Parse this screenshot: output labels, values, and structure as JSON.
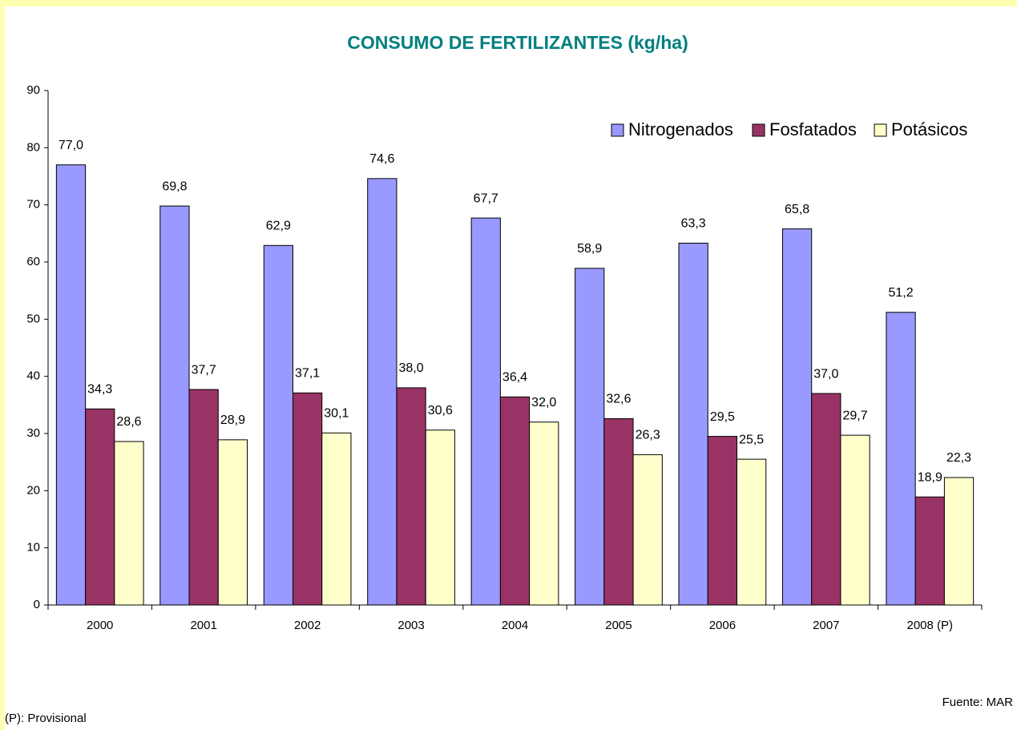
{
  "chart_data": {
    "type": "bar",
    "title": "CONSUMO DE FERTILIZANTES (kg/ha)",
    "categories": [
      "2000",
      "2001",
      "2002",
      "2003",
      "2004",
      "2005",
      "2006",
      "2007",
      "2008 (P)"
    ],
    "series": [
      {
        "name": "Nitrogenados",
        "color": "#9999ff",
        "values": [
          77.0,
          69.8,
          62.9,
          74.6,
          67.7,
          58.9,
          63.3,
          65.8,
          51.2
        ],
        "value_labels": [
          "77,0",
          "69,8",
          "62,9",
          "74,6",
          "67,7",
          "58,9",
          "63,3",
          "65,8",
          "51,2"
        ]
      },
      {
        "name": "Fosfatados",
        "color": "#993366",
        "values": [
          34.3,
          37.7,
          37.1,
          38.0,
          36.4,
          32.6,
          29.5,
          37.0,
          18.9
        ],
        "value_labels": [
          "34,3",
          "37,7",
          "37,1",
          "38,0",
          "36,4",
          "32,6",
          "29,5",
          "37,0",
          "18,9"
        ]
      },
      {
        "name": "Potásicos",
        "color": "#ffffcc",
        "values": [
          28.6,
          28.9,
          30.1,
          30.6,
          32.0,
          26.3,
          25.5,
          29.7,
          22.3
        ],
        "value_labels": [
          "28,6",
          "28,9",
          "30,1",
          "30,6",
          "32,0",
          "26,3",
          "25,5",
          "29,7",
          "22,3"
        ]
      }
    ],
    "ylim": [
      0,
      90
    ],
    "yticks": [
      0,
      10,
      20,
      30,
      40,
      50,
      60,
      70,
      80,
      90
    ],
    "grid": false,
    "legend": "top-right",
    "notes": [
      "(P): Provisional",
      "Fuente:  MAR"
    ]
  }
}
